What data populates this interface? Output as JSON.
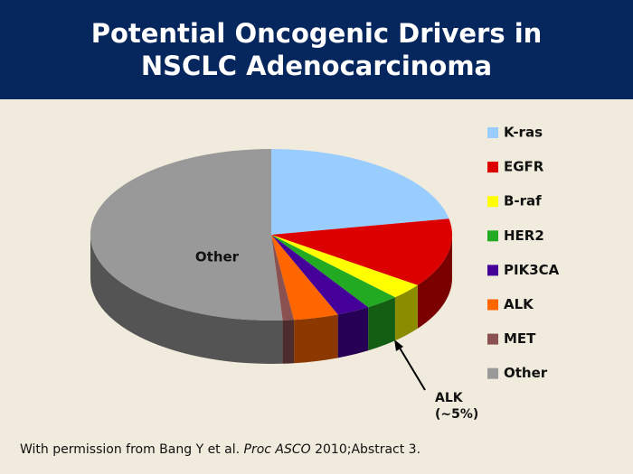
{
  "chart_data": {
    "type": "pie",
    "title": "Potential Oncogenic Drivers in NSCLC Adenocarcinoma",
    "categories": [
      "K-ras",
      "EGFR",
      "B-raf",
      "HER2",
      "PIK3CA",
      "ALK",
      "MET",
      "Other"
    ],
    "values": [
      22,
      13,
      3,
      3,
      3,
      4,
      1,
      51
    ],
    "colors": [
      "#99ccff",
      "#dd0000",
      "#ffff00",
      "#22aa22",
      "#440099",
      "#ff6600",
      "#8b5050",
      "#999999"
    ],
    "annotation": "ALK (~5%)",
    "legend": "right"
  },
  "footnote": {
    "prefix": "With permission from Bang Y et al. ",
    "journal": "Proc ASCO",
    "suffix": " 2010;Abstract 3."
  }
}
